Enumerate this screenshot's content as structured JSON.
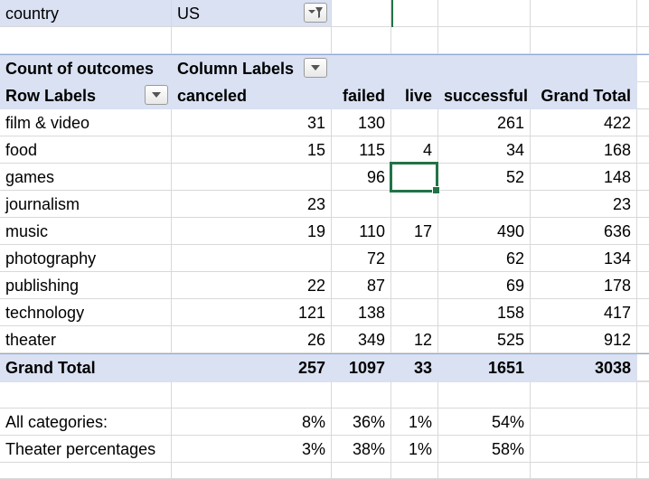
{
  "filter": {
    "label": "country",
    "value": "US"
  },
  "pivot": {
    "value_caption": "Count of outcomes",
    "column_caption": "Column Labels",
    "row_caption": "Row Labels",
    "columns": [
      "canceled",
      "failed",
      "live",
      "successful",
      "Grand Total"
    ],
    "rows": [
      {
        "label": "film & video",
        "canceled": "31",
        "failed": "130",
        "live": "",
        "successful": "261",
        "total": "422"
      },
      {
        "label": "food",
        "canceled": "15",
        "failed": "115",
        "live": "4",
        "successful": "34",
        "total": "168"
      },
      {
        "label": "games",
        "canceled": "",
        "failed": "96",
        "live": "",
        "successful": "52",
        "total": "148"
      },
      {
        "label": "journalism",
        "canceled": "23",
        "failed": "",
        "live": "",
        "successful": "",
        "total": "23"
      },
      {
        "label": "music",
        "canceled": "19",
        "failed": "110",
        "live": "17",
        "successful": "490",
        "total": "636"
      },
      {
        "label": "photography",
        "canceled": "",
        "failed": "72",
        "live": "",
        "successful": "62",
        "total": "134"
      },
      {
        "label": "publishing",
        "canceled": "22",
        "failed": "87",
        "live": "",
        "successful": "69",
        "total": "178"
      },
      {
        "label": "technology",
        "canceled": "121",
        "failed": "138",
        "live": "",
        "successful": "158",
        "total": "417"
      },
      {
        "label": "theater",
        "canceled": "26",
        "failed": "349",
        "live": "12",
        "successful": "525",
        "total": "912"
      }
    ],
    "grand_total": {
      "label": "Grand Total",
      "canceled": "257",
      "failed": "1097",
      "live": "33",
      "successful": "1651",
      "total": "3038"
    }
  },
  "percentages": [
    {
      "label": "All categories:",
      "canceled": "8%",
      "failed": "36%",
      "live": "1%",
      "successful": "54%"
    },
    {
      "label": "Theater percentages",
      "canceled": "3%",
      "failed": "38%",
      "live": "1%",
      "successful": "58%"
    }
  ],
  "icons": {
    "filter_active": "funnel-dropdown-icon",
    "dropdown": "chevron-down-icon"
  },
  "colors": {
    "pivot_band": "#d9e1f2",
    "selection": "#217346",
    "gridline": "#d9d9d9"
  }
}
